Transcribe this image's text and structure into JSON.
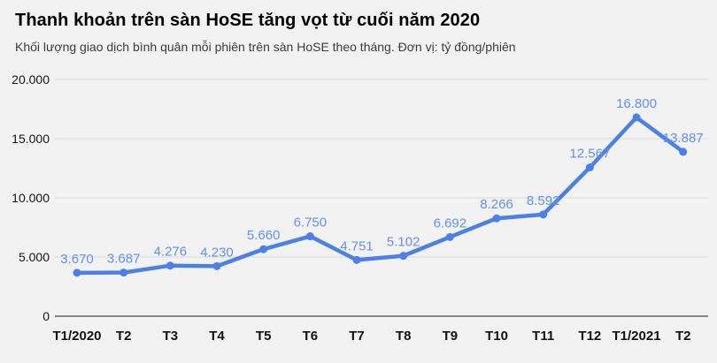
{
  "header": {
    "title": "Thanh khoản trên sàn HoSE tăng vọt từ cuối năm 2020",
    "subtitle": "Khối lượng giao dịch bình quân mỗi phiên trên sàn HoSE theo tháng. Đơn vị: tỷ đồng/phiên"
  },
  "chart_data": {
    "type": "line",
    "title": "Thanh khoản trên sàn HoSE tăng vọt từ cuối năm 2020",
    "subtitle": "Khối lượng giao dịch bình quân mỗi phiên trên sàn HoSE theo tháng. Đơn vị: tỷ đồng/phiên",
    "unit": "tỷ đồng/phiên",
    "categories": [
      "T1/2020",
      "T2",
      "T3",
      "T4",
      "T5",
      "T6",
      "T7",
      "T8",
      "T9",
      "T10",
      "T11",
      "T12",
      "T1/2021",
      "T2"
    ],
    "series": [
      {
        "name": "Khối lượng giao dịch bình quân mỗi phiên",
        "values": [
          3670,
          3687,
          4276,
          4230,
          5660,
          6750,
          4751,
          5102,
          6692,
          8266,
          8592,
          12567,
          16800,
          13887
        ],
        "value_labels": [
          "3.670",
          "3.687",
          "4.276",
          "4.230",
          "5.660",
          "6.750",
          "4.751",
          "5.102",
          "6.692",
          "8.266",
          "8.592",
          "12.567",
          "16.800",
          "13.887"
        ]
      }
    ],
    "xlabel": "",
    "ylabel": "",
    "ylim": [
      0,
      20000
    ],
    "y_ticks": [
      {
        "value": 0,
        "label": "0"
      },
      {
        "value": 5000,
        "label": "5.000"
      },
      {
        "value": 10000,
        "label": "10.000"
      },
      {
        "value": 15000,
        "label": "15.000"
      },
      {
        "value": 20000,
        "label": "20.000"
      }
    ],
    "grid": true,
    "legend": "none",
    "colors": {
      "line": "#4a80e8",
      "point": "#4a80e8",
      "value_label": "#6291ee",
      "grid": "#d9d9d9",
      "axis": "#616161",
      "background": "#f2f2f2",
      "title": "#000000",
      "subtitle": "#3c3c3c",
      "tick_label": "#131313"
    }
  }
}
